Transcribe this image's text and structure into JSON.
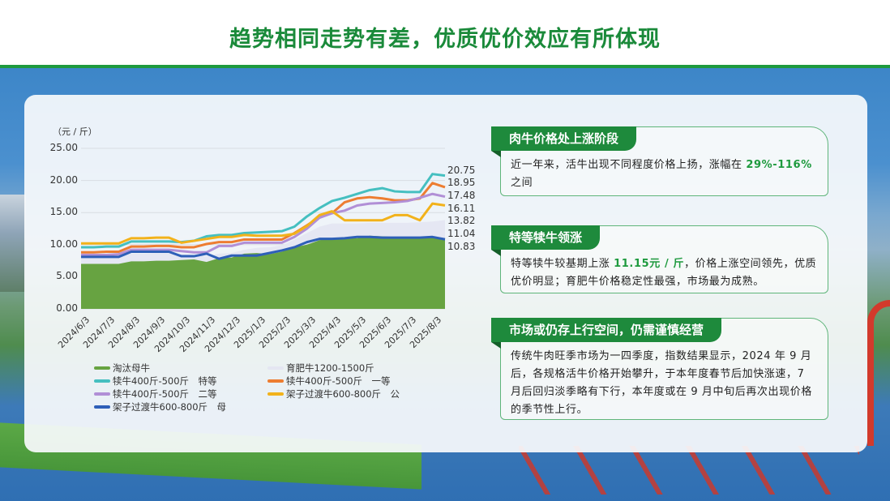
{
  "header": {
    "title": "趋势相同走势有差，优质优价效应有所体现"
  },
  "colors": {
    "brand_green": "#1e8a3c",
    "title_green": "#1a8a3a",
    "highlight_green": "#1e9a3e"
  },
  "chart": {
    "unit": "（元 / 斤）",
    "y_ticks": [
      "25.00",
      "20.00",
      "15.00",
      "10.00",
      "5.00",
      "0.00"
    ],
    "x_ticks": [
      "2024/6/3",
      "2024/7/3",
      "2024/8/3",
      "2024/9/3",
      "2024/10/3",
      "2024/11/3",
      "2024/12/3",
      "2025/1/3",
      "2025/2/3",
      "2025/3/3",
      "2025/4/3",
      "2025/5/3",
      "2025/6/3",
      "2025/7/3",
      "2025/8/3"
    ],
    "end_labels": [
      "20.75",
      "18.95",
      "17.48",
      "16.11",
      "13.82",
      "11.04",
      "10.83"
    ],
    "legend": [
      {
        "label": "淘汰母牛",
        "color": "#67a341"
      },
      {
        "label": "育肥牛1200-1500斤",
        "color": "#e4e6f2"
      },
      {
        "label": "犊牛400斤-500斤　特等",
        "color": "#45bfc0"
      },
      {
        "label": "犊牛400斤-500斤　一等",
        "color": "#ed7d31"
      },
      {
        "label": "犊牛400斤-500斤　二等",
        "color": "#b18fd6"
      },
      {
        "label": "架子过渡牛600-800斤　公",
        "color": "#f2b21b"
      },
      {
        "label": "架子过渡牛600-800斤　母",
        "color": "#2e5fb8"
      }
    ]
  },
  "chart_data": {
    "type": "line",
    "title": "",
    "xlabel": "",
    "ylabel": "元 / 斤",
    "ylim": [
      0,
      25
    ],
    "grid": true,
    "legend_position": "bottom",
    "x": [
      "2024/6/3",
      "2024/6/18",
      "2024/7/3",
      "2024/7/18",
      "2024/8/3",
      "2024/8/18",
      "2024/9/3",
      "2024/9/18",
      "2024/10/3",
      "2024/10/18",
      "2024/11/3",
      "2024/11/18",
      "2024/12/3",
      "2024/12/18",
      "2025/1/3",
      "2025/1/18",
      "2025/2/3",
      "2025/2/18",
      "2025/3/3",
      "2025/3/18",
      "2025/4/3",
      "2025/4/18",
      "2025/5/3",
      "2025/5/18",
      "2025/6/3",
      "2025/6/18",
      "2025/7/3",
      "2025/7/18",
      "2025/8/3",
      "2025/8/18"
    ],
    "series": [
      {
        "name": "淘汰母牛",
        "type": "area",
        "values": [
          7.0,
          7.0,
          7.0,
          7.0,
          7.4,
          7.4,
          7.5,
          7.5,
          7.6,
          7.7,
          7.3,
          7.9,
          8.0,
          8.6,
          8.7,
          8.5,
          8.9,
          9.6,
          10.0,
          10.7,
          11.0,
          11.0,
          11.0,
          11.4,
          11.3,
          11.2,
          11.1,
          11.2,
          11.2,
          11.04
        ]
      },
      {
        "name": "育肥牛1200-1500斤",
        "type": "area",
        "values": [
          8.0,
          8.0,
          8.0,
          8.1,
          8.6,
          8.6,
          8.7,
          8.7,
          8.5,
          8.4,
          8.2,
          8.6,
          8.7,
          9.2,
          9.5,
          9.6,
          9.9,
          10.8,
          11.8,
          12.8,
          13.3,
          13.3,
          13.3,
          13.4,
          13.4,
          13.4,
          13.4,
          13.5,
          13.6,
          13.82
        ]
      },
      {
        "name": "犊牛400斤-500斤 特等",
        "values": [
          9.6,
          9.6,
          9.7,
          9.7,
          10.5,
          10.5,
          10.5,
          10.5,
          10.4,
          10.6,
          11.3,
          11.5,
          11.5,
          11.8,
          11.9,
          12.0,
          12.1,
          12.8,
          14.4,
          15.7,
          16.8,
          17.3,
          17.9,
          18.5,
          18.8,
          18.3,
          18.2,
          18.2,
          21.0,
          20.75
        ]
      },
      {
        "name": "犊牛400斤-500斤 一等",
        "values": [
          8.8,
          8.8,
          8.9,
          8.9,
          9.7,
          9.7,
          9.8,
          9.8,
          9.6,
          9.6,
          10.1,
          10.4,
          10.4,
          10.8,
          10.8,
          10.8,
          10.8,
          11.8,
          13.0,
          14.3,
          14.9,
          16.6,
          17.2,
          17.4,
          17.2,
          16.9,
          16.9,
          17.2,
          19.6,
          18.95
        ]
      },
      {
        "name": "犊牛400斤-500斤 二等",
        "values": [
          8.4,
          8.4,
          8.4,
          8.5,
          9.2,
          9.2,
          9.2,
          9.2,
          9.0,
          8.8,
          8.8,
          9.8,
          9.8,
          10.3,
          10.3,
          10.3,
          10.3,
          11.2,
          12.5,
          14.2,
          14.9,
          15.3,
          16.1,
          16.4,
          16.5,
          16.6,
          16.8,
          17.3,
          17.9,
          17.48
        ]
      },
      {
        "name": "架子过渡牛600-800斤 公",
        "values": [
          10.2,
          10.2,
          10.2,
          10.2,
          11.0,
          11.0,
          11.1,
          11.1,
          10.3,
          10.6,
          10.9,
          11.2,
          11.2,
          11.5,
          11.4,
          11.4,
          11.4,
          11.7,
          12.9,
          14.6,
          15.2,
          13.8,
          13.8,
          13.8,
          13.8,
          14.6,
          14.6,
          13.8,
          16.4,
          16.11
        ]
      },
      {
        "name": "架子过渡牛600-800斤 母",
        "values": [
          8.1,
          8.1,
          8.1,
          8.1,
          8.9,
          8.9,
          8.9,
          8.9,
          8.2,
          8.2,
          8.6,
          7.8,
          8.3,
          8.3,
          8.3,
          8.7,
          9.1,
          9.6,
          10.4,
          10.9,
          10.9,
          11.0,
          11.2,
          11.2,
          11.1,
          11.1,
          11.1,
          11.1,
          11.2,
          10.83
        ]
      }
    ]
  },
  "cards": [
    {
      "heading": "肉牛价格处上涨阶段",
      "body_pre": "近一年来，活牛出现不同程度价格上扬，涨幅在 ",
      "body_highlight": "29%-116%",
      "body_post": " 之间"
    },
    {
      "heading": "特等犊牛领涨",
      "body_pre": "特等犊牛较基期上涨 ",
      "body_highlight": "11.15元 / 斤",
      "body_post": "，价格上涨空间领先，优质优价明显；育肥牛价格稳定性最强，市场最为成熟。"
    },
    {
      "heading": "市场或仍存上行空间，仍需谨慎经营",
      "body_pre": "传统牛肉旺季市场为一四季度，指数结果显示，2024 年 9 月后，各规格活牛价格开始攀升，于本年度春节后加快涨速，7 月后回归淡季略有下行，本年度或在 9 月中旬后再次出现价格的季节性上行。",
      "body_highlight": "",
      "body_post": ""
    }
  ]
}
